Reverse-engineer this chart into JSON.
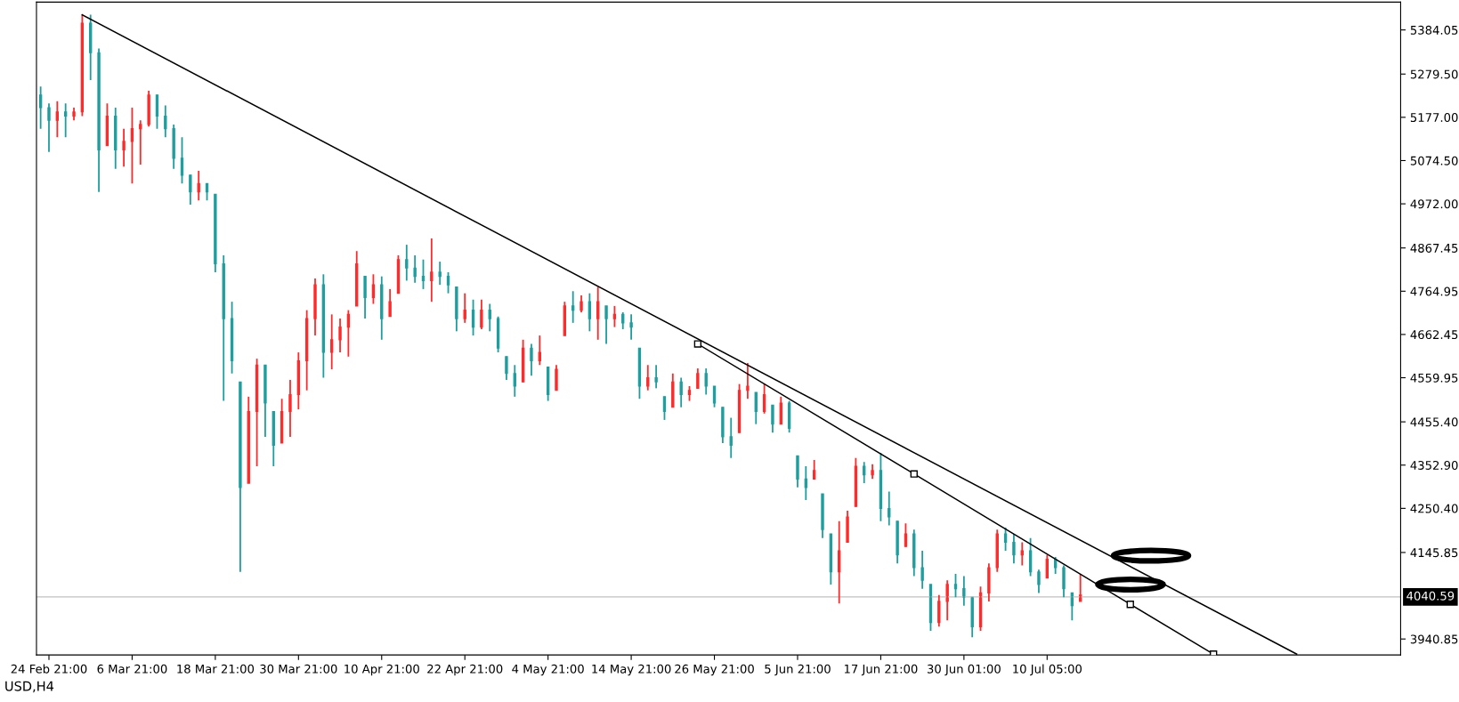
{
  "chart_data": {
    "type": "candlestick",
    "categories": [
      null,
      "24 Feb 21:00",
      null,
      null,
      null,
      null,
      null,
      null,
      null,
      null,
      null,
      "6 Mar 21:00",
      null,
      null,
      null,
      null,
      null,
      null,
      null,
      null,
      null,
      "18 Mar 21:00",
      null,
      null,
      null,
      null,
      null,
      null,
      null,
      null,
      null,
      "30 Mar 21:00",
      null,
      null,
      null,
      null,
      null,
      null,
      null,
      null,
      null,
      "10 Apr 21:00",
      null,
      null,
      null,
      null,
      null,
      null,
      null,
      null,
      null,
      "22 Apr 21:00",
      null,
      null,
      null,
      null,
      null,
      null,
      null,
      null,
      null,
      "4 May 21:00",
      null,
      null,
      null,
      null,
      null,
      null,
      null,
      null,
      null,
      "14 May 21:00",
      null,
      null,
      null,
      null,
      null,
      null,
      null,
      null,
      null,
      "26 May 21:00",
      null,
      null,
      null,
      null,
      null,
      null,
      null,
      null,
      null,
      "5 Jun 21:00",
      null,
      null,
      null,
      null,
      null,
      null,
      null,
      null,
      null,
      "17 Jun 21:00",
      null,
      null,
      null,
      null,
      null,
      null,
      null,
      null,
      null,
      "30 Jun 01:00",
      null,
      null,
      null,
      null,
      null,
      null,
      null,
      null,
      null,
      "10 Jul 05:00",
      null,
      null,
      null,
      null,
      null,
      null,
      null,
      null,
      null,
      null,
      null,
      null,
      null,
      null,
      null,
      null,
      null,
      null,
      null,
      null,
      null,
      null,
      null,
      null,
      null,
      null,
      null,
      null,
      null,
      null,
      null,
      null,
      null,
      null,
      null,
      null,
      null,
      null,
      null,
      null,
      null,
      null
    ],
    "ohlc": [
      [
        5230,
        5250,
        5150,
        5200
      ],
      [
        5200,
        5210,
        5095,
        5170
      ],
      [
        5170,
        5215,
        5130,
        5190
      ],
      [
        5190,
        5210,
        5130,
        5180
      ],
      [
        5180,
        5200,
        5170,
        5190
      ],
      [
        5190,
        5420,
        5180,
        5400
      ],
      [
        5400,
        5420,
        5265,
        5330
      ],
      [
        5330,
        5340,
        5000,
        5100
      ],
      [
        5110,
        5210,
        5110,
        5180
      ],
      [
        5180,
        5200,
        5055,
        5100
      ],
      [
        5100,
        5150,
        5060,
        5120
      ],
      [
        5120,
        5200,
        5020,
        5150
      ],
      [
        5150,
        5170,
        5065,
        5160
      ],
      [
        5160,
        5240,
        5155,
        5230
      ],
      [
        5230,
        5230,
        5150,
        5180
      ],
      [
        5180,
        5205,
        5130,
        5150
      ],
      [
        5150,
        5160,
        5055,
        5080
      ],
      [
        5080,
        5130,
        5020,
        5040
      ],
      [
        5040,
        5040,
        4970,
        5000
      ],
      [
        5000,
        5050,
        4980,
        5020
      ],
      [
        5020,
        5020,
        4980,
        5000
      ],
      [
        4995,
        4995,
        4810,
        4830
      ],
      [
        4830,
        4850,
        4505,
        4700
      ],
      [
        4700,
        4740,
        4570,
        4600
      ],
      [
        4550,
        4550,
        4100,
        4300
      ],
      [
        4310,
        4515,
        4310,
        4480
      ],
      [
        4480,
        4605,
        4350,
        4590
      ],
      [
        4590,
        4590,
        4420,
        4500
      ],
      [
        4480,
        4480,
        4350,
        4400
      ],
      [
        4405,
        4510,
        4405,
        4480
      ],
      [
        4480,
        4555,
        4420,
        4520
      ],
      [
        4520,
        4620,
        4485,
        4600
      ],
      [
        4600,
        4720,
        4530,
        4700
      ],
      [
        4700,
        4795,
        4660,
        4780
      ],
      [
        4780,
        4805,
        4560,
        4620
      ],
      [
        4620,
        4710,
        4580,
        4650
      ],
      [
        4650,
        4700,
        4620,
        4680
      ],
      [
        4680,
        4720,
        4610,
        4710
      ],
      [
        4730,
        4860,
        4730,
        4830
      ],
      [
        4800,
        4800,
        4700,
        4750
      ],
      [
        4750,
        4805,
        4735,
        4780
      ],
      [
        4780,
        4800,
        4650,
        4700
      ],
      [
        4705,
        4770,
        4705,
        4740
      ],
      [
        4760,
        4850,
        4760,
        4840
      ],
      [
        4840,
        4875,
        4790,
        4820
      ],
      [
        4820,
        4850,
        4785,
        4800
      ],
      [
        4800,
        4840,
        4770,
        4790
      ],
      [
        4790,
        4890,
        4740,
        4810
      ],
      [
        4810,
        4835,
        4780,
        4800
      ],
      [
        4800,
        4810,
        4760,
        4780
      ],
      [
        4775,
        4775,
        4670,
        4700
      ],
      [
        4700,
        4760,
        4690,
        4720
      ],
      [
        4720,
        4745,
        4660,
        4680
      ],
      [
        4680,
        4745,
        4675,
        4720
      ],
      [
        4720,
        4735,
        4670,
        4700
      ],
      [
        4700,
        4705,
        4620,
        4630
      ],
      [
        4610,
        4610,
        4555,
        4570
      ],
      [
        4570,
        4590,
        4515,
        4540
      ],
      [
        4550,
        4650,
        4550,
        4630
      ],
      [
        4630,
        4640,
        4565,
        4600
      ],
      [
        4600,
        4660,
        4590,
        4620
      ],
      [
        4585,
        4585,
        4505,
        4520
      ],
      [
        4530,
        4590,
        4530,
        4580
      ],
      [
        4660,
        4740,
        4660,
        4730
      ],
      [
        4730,
        4765,
        4690,
        4720
      ],
      [
        4720,
        4755,
        4715,
        4740
      ],
      [
        4740,
        4760,
        4670,
        4700
      ],
      [
        4700,
        4775,
        4650,
        4740
      ],
      [
        4730,
        4730,
        4640,
        4700
      ],
      [
        4700,
        4730,
        4680,
        4710
      ],
      [
        4710,
        4715,
        4675,
        4690
      ],
      [
        4690,
        4710,
        4650,
        4680
      ],
      [
        4630,
        4630,
        4510,
        4540
      ],
      [
        4540,
        4590,
        4530,
        4560
      ],
      [
        4560,
        4590,
        4535,
        4550
      ],
      [
        4515,
        4515,
        4460,
        4480
      ],
      [
        4490,
        4570,
        4490,
        4550
      ],
      [
        4550,
        4560,
        4490,
        4520
      ],
      [
        4520,
        4540,
        4505,
        4530
      ],
      [
        4535,
        4582,
        4535,
        4570
      ],
      [
        4570,
        4582,
        4520,
        4540
      ],
      [
        4540,
        4540,
        4490,
        4500
      ],
      [
        4490,
        4490,
        4405,
        4420
      ],
      [
        4420,
        4465,
        4370,
        4400
      ],
      [
        4430,
        4545,
        4430,
        4530
      ],
      [
        4530,
        4595,
        4510,
        4540
      ],
      [
        4525,
        4525,
        4450,
        4480
      ],
      [
        4480,
        4545,
        4475,
        4520
      ],
      [
        4495,
        4495,
        4430,
        4450
      ],
      [
        4450,
        4515,
        4450,
        4500
      ],
      [
        4500,
        4505,
        4430,
        4440
      ],
      [
        4375,
        4375,
        4300,
        4320
      ],
      [
        4320,
        4350,
        4270,
        4300
      ],
      [
        4320,
        4365,
        4320,
        4340
      ],
      [
        4285,
        4285,
        4180,
        4200
      ],
      [
        4190,
        4190,
        4070,
        4100
      ],
      [
        4100,
        4220,
        4025,
        4150
      ],
      [
        4170,
        4245,
        4170,
        4230
      ],
      [
        4255,
        4370,
        4255,
        4350
      ],
      [
        4350,
        4360,
        4310,
        4330
      ],
      [
        4330,
        4355,
        4320,
        4340
      ],
      [
        4340,
        4382,
        4220,
        4250
      ],
      [
        4250,
        4290,
        4210,
        4230
      ],
      [
        4220,
        4220,
        4120,
        4140
      ],
      [
        4160,
        4215,
        4160,
        4190
      ],
      [
        4190,
        4200,
        4090,
        4110
      ],
      [
        4110,
        4150,
        4060,
        4080
      ],
      [
        4070,
        4070,
        3960,
        3980
      ],
      [
        3980,
        4045,
        3970,
        4030
      ],
      [
        4030,
        4080,
        3985,
        4070
      ],
      [
        4070,
        4095,
        4040,
        4060
      ],
      [
        4060,
        4090,
        4020,
        4040
      ],
      [
        4040,
        4040,
        3945,
        3970
      ],
      [
        3970,
        4065,
        3960,
        4050
      ],
      [
        4050,
        4120,
        4030,
        4110
      ],
      [
        4110,
        4200,
        4100,
        4190
      ],
      [
        4190,
        4205,
        4150,
        4170
      ],
      [
        4170,
        4190,
        4120,
        4140
      ],
      [
        4140,
        4170,
        4115,
        4150
      ],
      [
        4150,
        4180,
        4090,
        4100
      ],
      [
        4100,
        4105,
        4050,
        4070
      ],
      [
        4085,
        4140,
        4085,
        4130
      ],
      [
        4130,
        4135,
        4095,
        4110
      ],
      [
        4110,
        4115,
        4040,
        4060
      ],
      [
        4050,
        4050,
        3985,
        4020
      ],
      [
        4030,
        4095,
        4030,
        4045
      ],
      null,
      null,
      null,
      null,
      null,
      null,
      null,
      null,
      null,
      null,
      null,
      null,
      null,
      null,
      null,
      null,
      null,
      null,
      null,
      null,
      null,
      null,
      null,
      null,
      null,
      null,
      null,
      null,
      null,
      null,
      null,
      null,
      null,
      null,
      null,
      null,
      null,
      null
    ],
    "colors": [
      "#1e9e9e",
      "#1e9e9e",
      "#ff2a2a",
      "#1e9e9e",
      "#ff2a2a",
      "#ff2a2a",
      "#1e9e9e",
      "#1e9e9e",
      "#ff2a2a",
      "#1e9e9e",
      "#ff2a2a",
      "#ff2a2a",
      "#ff2a2a",
      "#ff2a2a",
      "#1e9e9e",
      "#1e9e9e",
      "#1e9e9e",
      "#1e9e9e",
      "#1e9e9e",
      "#ff2a2a",
      "#1e9e9e",
      "#1e9e9e",
      "#1e9e9e",
      "#1e9e9e",
      "#1e9e9e",
      "#ff2a2a",
      "#ff2a2a",
      "#1e9e9e",
      "#1e9e9e",
      "#ff2a2a",
      "#ff2a2a",
      "#ff2a2a",
      "#ff2a2a",
      "#ff2a2a",
      "#1e9e9e",
      "#ff2a2a",
      "#ff2a2a",
      "#ff2a2a",
      "#ff2a2a",
      "#1e9e9e",
      "#ff2a2a",
      "#1e9e9e",
      "#ff2a2a",
      "#ff2a2a",
      "#1e9e9e",
      "#1e9e9e",
      "#1e9e9e",
      "#ff2a2a",
      "#1e9e9e",
      "#1e9e9e",
      "#1e9e9e",
      "#ff2a2a",
      "#1e9e9e",
      "#ff2a2a",
      "#1e9e9e",
      "#1e9e9e",
      "#1e9e9e",
      "#1e9e9e",
      "#ff2a2a",
      "#1e9e9e",
      "#ff2a2a",
      "#1e9e9e",
      "#ff2a2a",
      "#ff2a2a",
      "#1e9e9e",
      "#ff2a2a",
      "#1e9e9e",
      "#ff2a2a",
      "#1e9e9e",
      "#ff2a2a",
      "#1e9e9e",
      "#1e9e9e",
      "#1e9e9e",
      "#ff2a2a",
      "#1e9e9e",
      "#1e9e9e",
      "#ff2a2a",
      "#1e9e9e",
      "#ff2a2a",
      "#ff2a2a",
      "#1e9e9e",
      "#1e9e9e",
      "#1e9e9e",
      "#1e9e9e",
      "#ff2a2a",
      "#ff2a2a",
      "#1e9e9e",
      "#ff2a2a",
      "#1e9e9e",
      "#ff2a2a",
      "#1e9e9e",
      "#1e9e9e",
      "#1e9e9e",
      "#ff2a2a",
      "#1e9e9e",
      "#1e9e9e",
      "#ff2a2a",
      "#ff2a2a",
      "#ff2a2a",
      "#1e9e9e",
      "#ff2a2a",
      "#1e9e9e",
      "#1e9e9e",
      "#1e9e9e",
      "#ff2a2a",
      "#1e9e9e",
      "#1e9e9e",
      "#1e9e9e",
      "#ff2a2a",
      "#ff2a2a",
      "#1e9e9e",
      "#1e9e9e",
      "#1e9e9e",
      "#ff2a2a",
      "#ff2a2a",
      "#ff2a2a",
      "#1e9e9e",
      "#1e9e9e",
      "#ff2a2a",
      "#1e9e9e",
      "#1e9e9e",
      "#ff2a2a",
      "#1e9e9e",
      "#1e9e9e",
      "#1e9e9e",
      "#ff2a2a",
      null,
      null,
      null,
      null,
      null,
      null,
      null,
      null,
      null,
      null,
      null,
      null,
      null,
      null,
      null,
      null,
      null,
      null,
      null,
      null,
      null,
      null,
      null,
      null,
      null,
      null,
      null,
      null,
      null,
      null,
      null,
      null,
      null,
      null,
      null,
      null,
      null,
      null
    ],
    "series": [
      {
        "type": "line",
        "color": "#000000",
        "marker": "none",
        "values": [
          null,
          null,
          null,
          null,
          null,
          5420,
          null,
          null,
          null,
          null,
          null,
          null,
          null,
          null,
          null,
          null,
          null,
          null,
          null,
          null,
          null,
          null,
          null,
          null,
          null,
          null,
          null,
          null,
          null,
          null,
          null,
          null,
          null,
          null,
          null,
          null,
          null,
          null,
          null,
          null,
          null,
          null,
          null,
          null,
          null,
          null,
          null,
          null,
          null,
          null,
          null,
          null,
          null,
          null,
          null,
          null,
          null,
          null,
          null,
          null,
          null,
          null,
          null,
          null,
          null,
          null,
          null,
          null,
          null,
          null,
          null,
          null,
          null,
          null,
          null,
          null,
          null,
          null,
          null,
          null,
          null,
          null,
          null,
          null,
          null,
          null,
          null,
          null,
          null,
          null,
          null,
          null,
          null,
          null,
          null,
          null,
          null,
          null,
          null,
          null,
          null,
          null,
          null,
          null,
          null,
          null,
          null,
          null,
          null,
          null,
          null,
          null,
          null,
          null,
          null,
          null,
          null,
          null,
          null,
          null,
          null,
          null,
          null,
          null,
          null,
          null,
          null,
          null,
          null,
          null,
          null,
          null,
          null,
          null,
          null,
          null,
          null,
          null,
          null,
          null,
          null,
          null,
          null,
          null,
          null,
          null,
          null,
          null,
          null,
          null,
          null,
          3905,
          null,
          null,
          null,
          null,
          null,
          null,
          null,
          null,
          null,
          null,
          null,
          null
        ]
      },
      {
        "type": "line",
        "color": "#000000",
        "marker": "square",
        "values": [
          null,
          null,
          null,
          null,
          null,
          null,
          null,
          null,
          null,
          null,
          null,
          null,
          null,
          null,
          null,
          null,
          null,
          null,
          null,
          null,
          null,
          null,
          null,
          null,
          null,
          null,
          null,
          null,
          null,
          null,
          null,
          null,
          null,
          null,
          null,
          null,
          null,
          null,
          null,
          null,
          null,
          null,
          null,
          null,
          null,
          null,
          null,
          null,
          null,
          null,
          null,
          null,
          null,
          null,
          null,
          null,
          null,
          null,
          null,
          null,
          null,
          null,
          null,
          null,
          null,
          null,
          null,
          null,
          null,
          null,
          null,
          null,
          null,
          null,
          null,
          null,
          null,
          null,
          null,
          4640,
          null,
          null,
          null,
          null,
          null,
          null,
          null,
          null,
          null,
          null,
          null,
          null,
          null,
          null,
          null,
          null,
          null,
          null,
          null,
          null,
          null,
          null,
          null,
          null,
          null,
          4332,
          null,
          null,
          null,
          null,
          null,
          null,
          null,
          null,
          null,
          null,
          null,
          null,
          null,
          null,
          null,
          null,
          null,
          null,
          null,
          null,
          null,
          null,
          null,
          null,
          null,
          4023,
          null,
          null,
          null,
          null,
          null,
          null,
          null,
          null,
          null,
          3905,
          null,
          null,
          null,
          null,
          null,
          null,
          null,
          null,
          null,
          null,
          null,
          null,
          null,
          null,
          null,
          null,
          null,
          null,
          null,
          null,
          null,
          null
        ]
      }
    ],
    "ylim": [
      3903,
      5450
    ],
    "yticks": [
      5384.05,
      {
        "value": 5279.5,
        "label": "5279.50"
      },
      {
        "value": 5177,
        "label": "5177.00"
      },
      {
        "value": 5074.5,
        "label": "5074.50"
      },
      {
        "value": 4972,
        "label": "4972.00"
      },
      4867.45,
      4764.95,
      4662.45,
      4559.95,
      {
        "value": 4455.4,
        "label": "4455.40"
      },
      {
        "value": 4352.9,
        "label": "4352.90"
      },
      {
        "value": 4250.4,
        "label": "4250.40"
      },
      4145.85,
      3940.85
    ],
    "ref_lines": [
      {
        "axis": "y",
        "value": 4040.59,
        "label": "4040.59",
        "color": "#c0c0c0"
      }
    ],
    "annotations": [
      "USD,H4"
    ],
    "grid": false,
    "legend": false
  }
}
